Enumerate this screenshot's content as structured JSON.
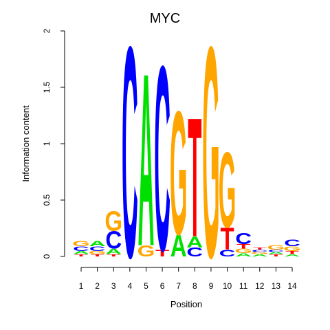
{
  "chart_data": {
    "type": "sequence-logo",
    "title": "MYC",
    "xlabel": "Position",
    "ylabel": "Information content",
    "ylim": [
      0,
      2
    ],
    "yticks": [
      "0",
      "0.5",
      "1",
      "1.5",
      "2"
    ],
    "positions": [
      "1",
      "2",
      "3",
      "4",
      "5",
      "6",
      "7",
      "8",
      "9",
      "10",
      "11",
      "12",
      "13",
      "14"
    ],
    "colors": {
      "A": "#00e000",
      "C": "#0000ff",
      "G": "#ffa500",
      "T": "#ff0000"
    },
    "columns": [
      [
        {
          "l": "T",
          "h": 0.02
        },
        {
          "l": "A",
          "h": 0.03
        },
        {
          "l": "C",
          "h": 0.04
        },
        {
          "l": "G",
          "h": 0.05
        }
      ],
      [
        {
          "l": "T",
          "h": 0.02
        },
        {
          "l": "G",
          "h": 0.03
        },
        {
          "l": "C",
          "h": 0.04
        },
        {
          "l": "A",
          "h": 0.05
        }
      ],
      [
        {
          "l": "T",
          "h": 0.02
        },
        {
          "l": "A",
          "h": 0.05
        },
        {
          "l": "C",
          "h": 0.16
        },
        {
          "l": "G",
          "h": 0.18
        }
      ],
      [
        {
          "l": "C",
          "h": 1.93
        }
      ],
      [
        {
          "l": "G",
          "h": 0.1
        },
        {
          "l": "A",
          "h": 1.58
        }
      ],
      [
        {
          "l": "T",
          "h": 0.06
        },
        {
          "l": "C",
          "h": 1.69
        }
      ],
      [
        {
          "l": "A",
          "h": 0.2
        },
        {
          "l": "G",
          "h": 1.13
        }
      ],
      [
        {
          "l": "C",
          "h": 0.08
        },
        {
          "l": "A",
          "h": 0.1
        },
        {
          "l": "T",
          "h": 1.09
        }
      ],
      [
        {
          "l": "G",
          "h": 1.93
        }
      ],
      [
        {
          "l": "C",
          "h": 0.06
        },
        {
          "l": "T",
          "h": 0.2
        },
        {
          "l": "G",
          "h": 0.69
        }
      ],
      [
        {
          "l": "A",
          "h": 0.03
        },
        {
          "l": "G",
          "h": 0.04
        },
        {
          "l": "T",
          "h": 0.04
        },
        {
          "l": "C",
          "h": 0.1
        }
      ],
      [
        {
          "l": "A",
          "h": 0.02
        },
        {
          "l": "G",
          "h": 0.02
        },
        {
          "l": "C",
          "h": 0.02
        },
        {
          "l": "T",
          "h": 0.02
        }
      ],
      [
        {
          "l": "T",
          "h": 0.02
        },
        {
          "l": "A",
          "h": 0.02
        },
        {
          "l": "C",
          "h": 0.02
        },
        {
          "l": "G",
          "h": 0.04
        }
      ],
      [
        {
          "l": "A",
          "h": 0.02
        },
        {
          "l": "T",
          "h": 0.03
        },
        {
          "l": "G",
          "h": 0.04
        },
        {
          "l": "C",
          "h": 0.06
        }
      ]
    ]
  }
}
